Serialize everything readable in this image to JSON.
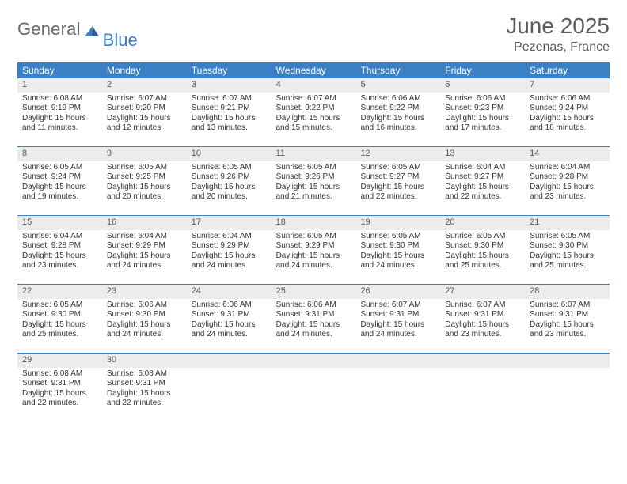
{
  "logo": {
    "general": "General",
    "blue": "Blue"
  },
  "title": "June 2025",
  "location": "Pezenas, France",
  "colors": {
    "header_bg": "#3b7fc4",
    "header_text": "#ffffff",
    "daynum_bg": "#ececec",
    "daynum_text": "#555555",
    "body_text": "#333333",
    "logo_gray": "#6a6a6a",
    "logo_blue": "#3b7fc4",
    "page_bg": "#ffffff",
    "row_border": "#3b7fc4"
  },
  "weekdays": [
    "Sunday",
    "Monday",
    "Tuesday",
    "Wednesday",
    "Thursday",
    "Friday",
    "Saturday"
  ],
  "weeks": [
    [
      {
        "n": "1",
        "sr": "Sunrise: 6:08 AM",
        "ss": "Sunset: 9:19 PM",
        "d1": "Daylight: 15 hours",
        "d2": "and 11 minutes."
      },
      {
        "n": "2",
        "sr": "Sunrise: 6:07 AM",
        "ss": "Sunset: 9:20 PM",
        "d1": "Daylight: 15 hours",
        "d2": "and 12 minutes."
      },
      {
        "n": "3",
        "sr": "Sunrise: 6:07 AM",
        "ss": "Sunset: 9:21 PM",
        "d1": "Daylight: 15 hours",
        "d2": "and 13 minutes."
      },
      {
        "n": "4",
        "sr": "Sunrise: 6:07 AM",
        "ss": "Sunset: 9:22 PM",
        "d1": "Daylight: 15 hours",
        "d2": "and 15 minutes."
      },
      {
        "n": "5",
        "sr": "Sunrise: 6:06 AM",
        "ss": "Sunset: 9:22 PM",
        "d1": "Daylight: 15 hours",
        "d2": "and 16 minutes."
      },
      {
        "n": "6",
        "sr": "Sunrise: 6:06 AM",
        "ss": "Sunset: 9:23 PM",
        "d1": "Daylight: 15 hours",
        "d2": "and 17 minutes."
      },
      {
        "n": "7",
        "sr": "Sunrise: 6:06 AM",
        "ss": "Sunset: 9:24 PM",
        "d1": "Daylight: 15 hours",
        "d2": "and 18 minutes."
      }
    ],
    [
      {
        "n": "8",
        "sr": "Sunrise: 6:05 AM",
        "ss": "Sunset: 9:24 PM",
        "d1": "Daylight: 15 hours",
        "d2": "and 19 minutes."
      },
      {
        "n": "9",
        "sr": "Sunrise: 6:05 AM",
        "ss": "Sunset: 9:25 PM",
        "d1": "Daylight: 15 hours",
        "d2": "and 20 minutes."
      },
      {
        "n": "10",
        "sr": "Sunrise: 6:05 AM",
        "ss": "Sunset: 9:26 PM",
        "d1": "Daylight: 15 hours",
        "d2": "and 20 minutes."
      },
      {
        "n": "11",
        "sr": "Sunrise: 6:05 AM",
        "ss": "Sunset: 9:26 PM",
        "d1": "Daylight: 15 hours",
        "d2": "and 21 minutes."
      },
      {
        "n": "12",
        "sr": "Sunrise: 6:05 AM",
        "ss": "Sunset: 9:27 PM",
        "d1": "Daylight: 15 hours",
        "d2": "and 22 minutes."
      },
      {
        "n": "13",
        "sr": "Sunrise: 6:04 AM",
        "ss": "Sunset: 9:27 PM",
        "d1": "Daylight: 15 hours",
        "d2": "and 22 minutes."
      },
      {
        "n": "14",
        "sr": "Sunrise: 6:04 AM",
        "ss": "Sunset: 9:28 PM",
        "d1": "Daylight: 15 hours",
        "d2": "and 23 minutes."
      }
    ],
    [
      {
        "n": "15",
        "sr": "Sunrise: 6:04 AM",
        "ss": "Sunset: 9:28 PM",
        "d1": "Daylight: 15 hours",
        "d2": "and 23 minutes."
      },
      {
        "n": "16",
        "sr": "Sunrise: 6:04 AM",
        "ss": "Sunset: 9:29 PM",
        "d1": "Daylight: 15 hours",
        "d2": "and 24 minutes."
      },
      {
        "n": "17",
        "sr": "Sunrise: 6:04 AM",
        "ss": "Sunset: 9:29 PM",
        "d1": "Daylight: 15 hours",
        "d2": "and 24 minutes."
      },
      {
        "n": "18",
        "sr": "Sunrise: 6:05 AM",
        "ss": "Sunset: 9:29 PM",
        "d1": "Daylight: 15 hours",
        "d2": "and 24 minutes."
      },
      {
        "n": "19",
        "sr": "Sunrise: 6:05 AM",
        "ss": "Sunset: 9:30 PM",
        "d1": "Daylight: 15 hours",
        "d2": "and 24 minutes."
      },
      {
        "n": "20",
        "sr": "Sunrise: 6:05 AM",
        "ss": "Sunset: 9:30 PM",
        "d1": "Daylight: 15 hours",
        "d2": "and 25 minutes."
      },
      {
        "n": "21",
        "sr": "Sunrise: 6:05 AM",
        "ss": "Sunset: 9:30 PM",
        "d1": "Daylight: 15 hours",
        "d2": "and 25 minutes."
      }
    ],
    [
      {
        "n": "22",
        "sr": "Sunrise: 6:05 AM",
        "ss": "Sunset: 9:30 PM",
        "d1": "Daylight: 15 hours",
        "d2": "and 25 minutes."
      },
      {
        "n": "23",
        "sr": "Sunrise: 6:06 AM",
        "ss": "Sunset: 9:30 PM",
        "d1": "Daylight: 15 hours",
        "d2": "and 24 minutes."
      },
      {
        "n": "24",
        "sr": "Sunrise: 6:06 AM",
        "ss": "Sunset: 9:31 PM",
        "d1": "Daylight: 15 hours",
        "d2": "and 24 minutes."
      },
      {
        "n": "25",
        "sr": "Sunrise: 6:06 AM",
        "ss": "Sunset: 9:31 PM",
        "d1": "Daylight: 15 hours",
        "d2": "and 24 minutes."
      },
      {
        "n": "26",
        "sr": "Sunrise: 6:07 AM",
        "ss": "Sunset: 9:31 PM",
        "d1": "Daylight: 15 hours",
        "d2": "and 24 minutes."
      },
      {
        "n": "27",
        "sr": "Sunrise: 6:07 AM",
        "ss": "Sunset: 9:31 PM",
        "d1": "Daylight: 15 hours",
        "d2": "and 23 minutes."
      },
      {
        "n": "28",
        "sr": "Sunrise: 6:07 AM",
        "ss": "Sunset: 9:31 PM",
        "d1": "Daylight: 15 hours",
        "d2": "and 23 minutes."
      }
    ],
    [
      {
        "n": "29",
        "sr": "Sunrise: 6:08 AM",
        "ss": "Sunset: 9:31 PM",
        "d1": "Daylight: 15 hours",
        "d2": "and 22 minutes."
      },
      {
        "n": "30",
        "sr": "Sunrise: 6:08 AM",
        "ss": "Sunset: 9:31 PM",
        "d1": "Daylight: 15 hours",
        "d2": "and 22 minutes."
      },
      {
        "n": "",
        "sr": "",
        "ss": "",
        "d1": "",
        "d2": ""
      },
      {
        "n": "",
        "sr": "",
        "ss": "",
        "d1": "",
        "d2": ""
      },
      {
        "n": "",
        "sr": "",
        "ss": "",
        "d1": "",
        "d2": ""
      },
      {
        "n": "",
        "sr": "",
        "ss": "",
        "d1": "",
        "d2": ""
      },
      {
        "n": "",
        "sr": "",
        "ss": "",
        "d1": "",
        "d2": ""
      }
    ]
  ]
}
